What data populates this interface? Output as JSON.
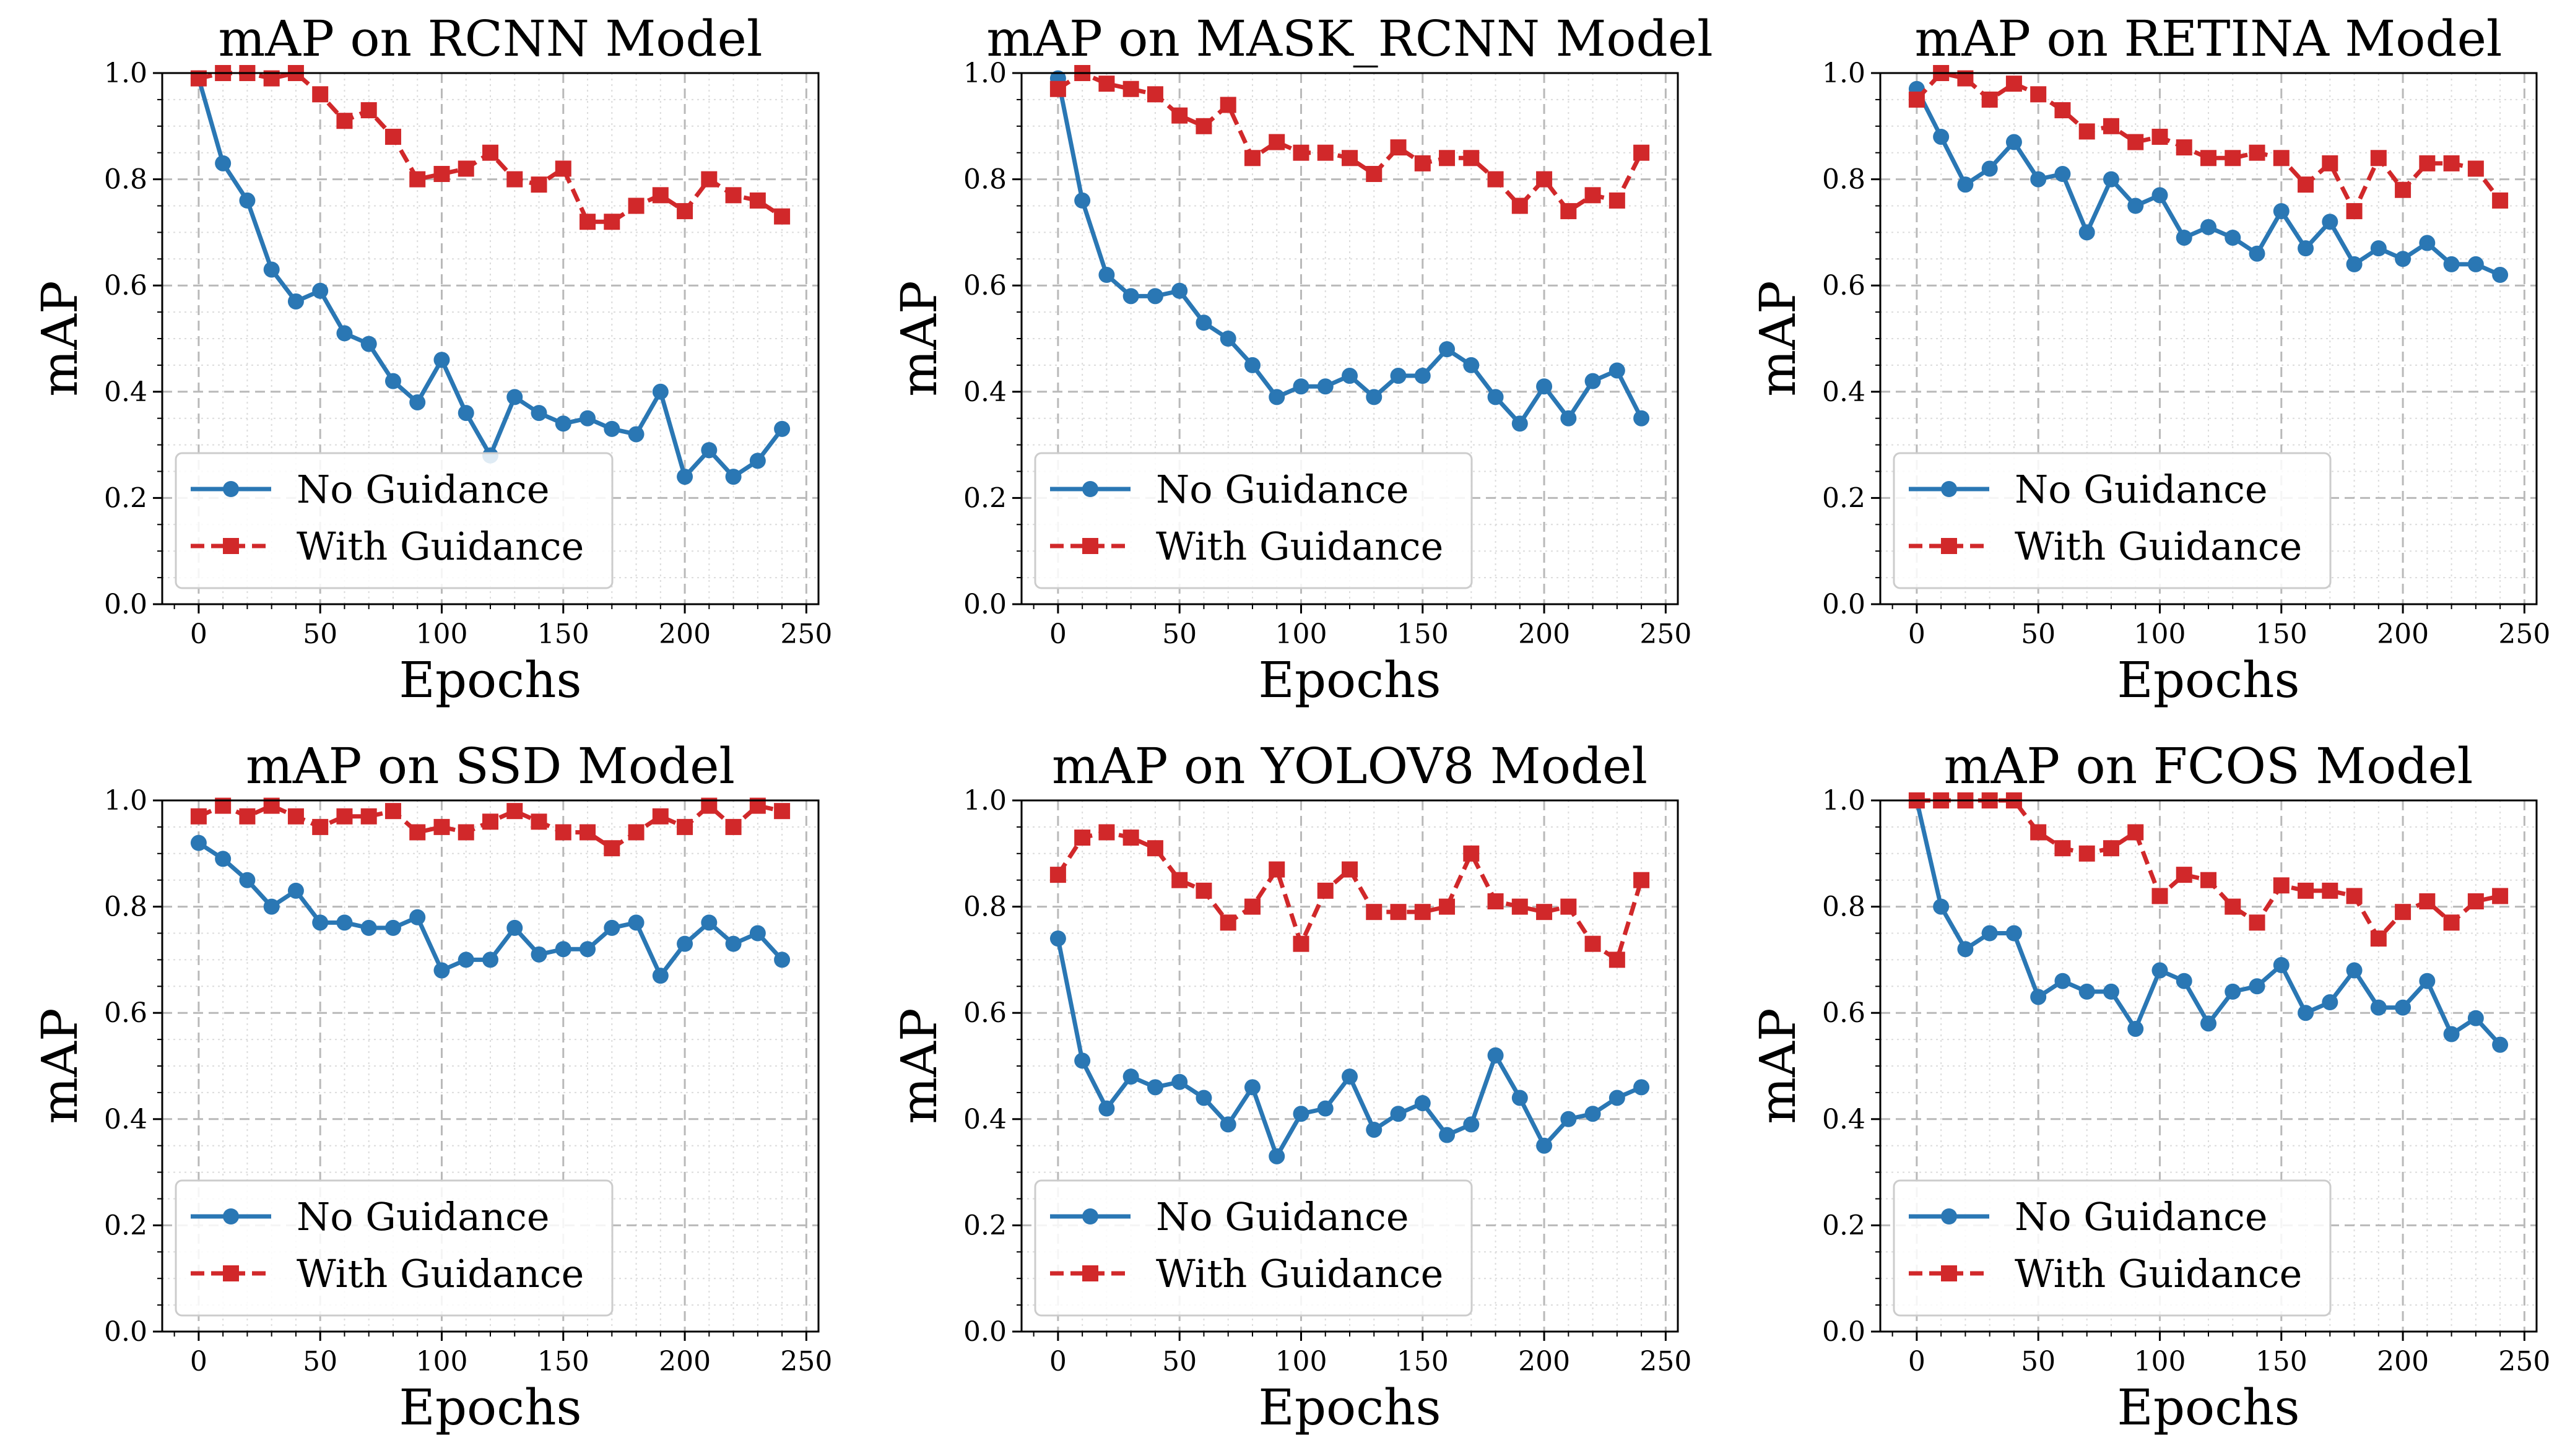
{
  "colors": {
    "no_guidance": "#2a77b4",
    "with_guidance": "#d1282a"
  },
  "chart_data": [
    {
      "type": "line",
      "title": "mAP on RCNN Model",
      "xlabel": "Epochs",
      "ylabel": "mAP",
      "xlim": [
        -15,
        255
      ],
      "ylim": [
        0,
        1.0
      ],
      "xticks": [
        "0",
        "50",
        "100",
        "150",
        "200",
        "250"
      ],
      "yticks": [
        "0.0",
        "0.2",
        "0.4",
        "0.6",
        "0.8",
        "1.0"
      ],
      "grid": true,
      "legend": "lower-left",
      "x": [
        0,
        10,
        20,
        30,
        40,
        50,
        60,
        70,
        80,
        90,
        100,
        110,
        120,
        130,
        140,
        150,
        160,
        170,
        180,
        190,
        200,
        210,
        220,
        230,
        240
      ],
      "series": [
        {
          "name": "No Guidance",
          "style": "solid-circle",
          "values": [
            0.99,
            0.83,
            0.76,
            0.63,
            0.57,
            0.59,
            0.51,
            0.49,
            0.42,
            0.38,
            0.46,
            0.36,
            0.28,
            0.39,
            0.36,
            0.34,
            0.35,
            0.33,
            0.32,
            0.4,
            0.24,
            0.29,
            0.24,
            0.27,
            0.33
          ]
        },
        {
          "name": "With Guidance",
          "style": "dashed-square",
          "values": [
            0.99,
            1.0,
            1.0,
            0.99,
            1.0,
            0.96,
            0.91,
            0.93,
            0.88,
            0.8,
            0.81,
            0.82,
            0.85,
            0.8,
            0.79,
            0.82,
            0.72,
            0.72,
            0.75,
            0.77,
            0.74,
            0.8,
            0.77,
            0.76,
            0.73
          ]
        }
      ]
    },
    {
      "type": "line",
      "title": "mAP on MASK_RCNN Model",
      "xlabel": "Epochs",
      "ylabel": "mAP",
      "xlim": [
        -15,
        255
      ],
      "ylim": [
        0,
        1.0
      ],
      "xticks": [
        "0",
        "50",
        "100",
        "150",
        "200",
        "250"
      ],
      "yticks": [
        "0.0",
        "0.2",
        "0.4",
        "0.6",
        "0.8",
        "1.0"
      ],
      "grid": true,
      "legend": "lower-left",
      "x": [
        0,
        10,
        20,
        30,
        40,
        50,
        60,
        70,
        80,
        90,
        100,
        110,
        120,
        130,
        140,
        150,
        160,
        170,
        180,
        190,
        200,
        210,
        220,
        230,
        240
      ],
      "series": [
        {
          "name": "No Guidance",
          "style": "solid-circle",
          "values": [
            0.99,
            0.76,
            0.62,
            0.58,
            0.58,
            0.59,
            0.53,
            0.5,
            0.45,
            0.39,
            0.41,
            0.41,
            0.43,
            0.39,
            0.43,
            0.43,
            0.48,
            0.45,
            0.39,
            0.34,
            0.41,
            0.35,
            0.42,
            0.44,
            0.35
          ]
        },
        {
          "name": "With Guidance",
          "style": "dashed-square",
          "values": [
            0.97,
            1.0,
            0.98,
            0.97,
            0.96,
            0.92,
            0.9,
            0.94,
            0.84,
            0.87,
            0.85,
            0.85,
            0.84,
            0.81,
            0.86,
            0.83,
            0.84,
            0.84,
            0.8,
            0.75,
            0.8,
            0.74,
            0.77,
            0.76,
            0.85
          ]
        }
      ]
    },
    {
      "type": "line",
      "title": "mAP on RETINA Model",
      "xlabel": "Epochs",
      "ylabel": "mAP",
      "xlim": [
        -15,
        255
      ],
      "ylim": [
        0,
        1.0
      ],
      "xticks": [
        "0",
        "50",
        "100",
        "150",
        "200",
        "250"
      ],
      "yticks": [
        "0.0",
        "0.2",
        "0.4",
        "0.6",
        "0.8",
        "1.0"
      ],
      "grid": true,
      "legend": "lower-left",
      "x": [
        0,
        10,
        20,
        30,
        40,
        50,
        60,
        70,
        80,
        90,
        100,
        110,
        120,
        130,
        140,
        150,
        160,
        170,
        180,
        190,
        200,
        210,
        220,
        230,
        240
      ],
      "series": [
        {
          "name": "No Guidance",
          "style": "solid-circle",
          "values": [
            0.97,
            0.88,
            0.79,
            0.82,
            0.87,
            0.8,
            0.81,
            0.7,
            0.8,
            0.75,
            0.77,
            0.69,
            0.71,
            0.69,
            0.66,
            0.74,
            0.67,
            0.72,
            0.64,
            0.67,
            0.65,
            0.68,
            0.64,
            0.64,
            0.62
          ]
        },
        {
          "name": "With Guidance",
          "style": "dashed-square",
          "values": [
            0.95,
            1.0,
            0.99,
            0.95,
            0.98,
            0.96,
            0.93,
            0.89,
            0.9,
            0.87,
            0.88,
            0.86,
            0.84,
            0.84,
            0.85,
            0.84,
            0.79,
            0.83,
            0.74,
            0.84,
            0.78,
            0.83,
            0.83,
            0.82,
            0.76
          ]
        }
      ]
    },
    {
      "type": "line",
      "title": "mAP on SSD Model",
      "xlabel": "Epochs",
      "ylabel": "mAP",
      "xlim": [
        -15,
        255
      ],
      "ylim": [
        0,
        1.0
      ],
      "xticks": [
        "0",
        "50",
        "100",
        "150",
        "200",
        "250"
      ],
      "yticks": [
        "0.0",
        "0.2",
        "0.4",
        "0.6",
        "0.8",
        "1.0"
      ],
      "grid": true,
      "legend": "lower-left",
      "x": [
        0,
        10,
        20,
        30,
        40,
        50,
        60,
        70,
        80,
        90,
        100,
        110,
        120,
        130,
        140,
        150,
        160,
        170,
        180,
        190,
        200,
        210,
        220,
        230,
        240
      ],
      "series": [
        {
          "name": "No Guidance",
          "style": "solid-circle",
          "values": [
            0.92,
            0.89,
            0.85,
            0.8,
            0.83,
            0.77,
            0.77,
            0.76,
            0.76,
            0.78,
            0.68,
            0.7,
            0.7,
            0.76,
            0.71,
            0.72,
            0.72,
            0.76,
            0.77,
            0.67,
            0.73,
            0.77,
            0.73,
            0.75,
            0.7
          ]
        },
        {
          "name": "With Guidance",
          "style": "dashed-square",
          "values": [
            0.97,
            0.99,
            0.97,
            0.99,
            0.97,
            0.95,
            0.97,
            0.97,
            0.98,
            0.94,
            0.95,
            0.94,
            0.96,
            0.98,
            0.96,
            0.94,
            0.94,
            0.91,
            0.94,
            0.97,
            0.95,
            0.99,
            0.95,
            0.99,
            0.98
          ]
        }
      ]
    },
    {
      "type": "line",
      "title": "mAP on YOLOV8 Model",
      "xlabel": "Epochs",
      "ylabel": "mAP",
      "xlim": [
        -15,
        255
      ],
      "ylim": [
        0,
        1.0
      ],
      "xticks": [
        "0",
        "50",
        "100",
        "150",
        "200",
        "250"
      ],
      "yticks": [
        "0.0",
        "0.2",
        "0.4",
        "0.6",
        "0.8",
        "1.0"
      ],
      "grid": true,
      "legend": "lower-left",
      "x": [
        0,
        10,
        20,
        30,
        40,
        50,
        60,
        70,
        80,
        90,
        100,
        110,
        120,
        130,
        140,
        150,
        160,
        170,
        180,
        190,
        200,
        210,
        220,
        230,
        240
      ],
      "series": [
        {
          "name": "No Guidance",
          "style": "solid-circle",
          "values": [
            0.74,
            0.51,
            0.42,
            0.48,
            0.46,
            0.47,
            0.44,
            0.39,
            0.46,
            0.33,
            0.41,
            0.42,
            0.48,
            0.38,
            0.41,
            0.43,
            0.37,
            0.39,
            0.52,
            0.44,
            0.35,
            0.4,
            0.41,
            0.44,
            0.46
          ]
        },
        {
          "name": "With Guidance",
          "style": "dashed-square",
          "values": [
            0.86,
            0.93,
            0.94,
            0.93,
            0.91,
            0.85,
            0.83,
            0.77,
            0.8,
            0.87,
            0.73,
            0.83,
            0.87,
            0.79,
            0.79,
            0.79,
            0.8,
            0.9,
            0.81,
            0.8,
            0.79,
            0.8,
            0.73,
            0.7,
            0.85
          ]
        }
      ]
    },
    {
      "type": "line",
      "title": "mAP on FCOS Model",
      "xlabel": "Epochs",
      "ylabel": "mAP",
      "xlim": [
        -15,
        255
      ],
      "ylim": [
        0,
        1.0
      ],
      "xticks": [
        "0",
        "50",
        "100",
        "150",
        "200",
        "250"
      ],
      "yticks": [
        "0.0",
        "0.2",
        "0.4",
        "0.6",
        "0.8",
        "1.0"
      ],
      "grid": true,
      "legend": "lower-left",
      "x": [
        0,
        10,
        20,
        30,
        40,
        50,
        60,
        70,
        80,
        90,
        100,
        110,
        120,
        130,
        140,
        150,
        160,
        170,
        180,
        190,
        200,
        210,
        220,
        230,
        240
      ],
      "series": [
        {
          "name": "No Guidance",
          "style": "solid-circle",
          "values": [
            1.0,
            0.8,
            0.72,
            0.75,
            0.75,
            0.63,
            0.66,
            0.64,
            0.64,
            0.57,
            0.68,
            0.66,
            0.58,
            0.64,
            0.65,
            0.69,
            0.6,
            0.62,
            0.68,
            0.61,
            0.61,
            0.66,
            0.56,
            0.59,
            0.54
          ]
        },
        {
          "name": "With Guidance",
          "style": "dashed-square",
          "values": [
            1.0,
            1.0,
            1.0,
            1.0,
            1.0,
            0.94,
            0.91,
            0.9,
            0.91,
            0.94,
            0.82,
            0.86,
            0.85,
            0.8,
            0.77,
            0.84,
            0.83,
            0.83,
            0.82,
            0.74,
            0.79,
            0.81,
            0.77,
            0.81,
            0.82
          ]
        }
      ]
    }
  ]
}
